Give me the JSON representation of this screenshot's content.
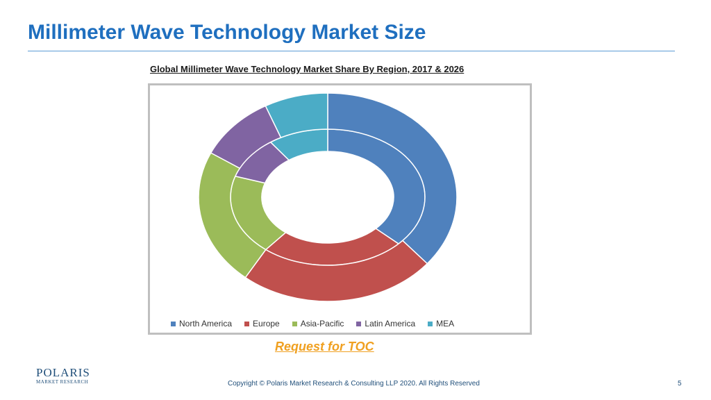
{
  "slide": {
    "title": "Millimeter Wave Technology Market Size",
    "toc_link": "Request for TOC",
    "copyright": "Copyright © Polaris Market Research & Consulting LLP 2020. All Rights Reserved",
    "page_number": "5"
  },
  "logo": {
    "name": "POLARIS",
    "sub": "MARKET RESEARCH"
  },
  "chart_data": {
    "type": "pie",
    "subtype": "doughnut",
    "title": "Global Millimeter Wave Technology Market Share By Region, 2017 & 2026",
    "categories": [
      "North America",
      "Europe",
      "Asia-Pacific",
      "Latin America",
      "MEA"
    ],
    "colors": [
      "#4f81bd",
      "#c0504d",
      "#9bbb59",
      "#8064a2",
      "#4bacc6"
    ],
    "series": [
      {
        "ring": "inner",
        "values": [
          37,
          24,
          19,
          10,
          10
        ]
      },
      {
        "ring": "outer",
        "values": [
          36,
          25,
          21,
          10,
          8
        ]
      }
    ],
    "legend_position": "bottom"
  }
}
